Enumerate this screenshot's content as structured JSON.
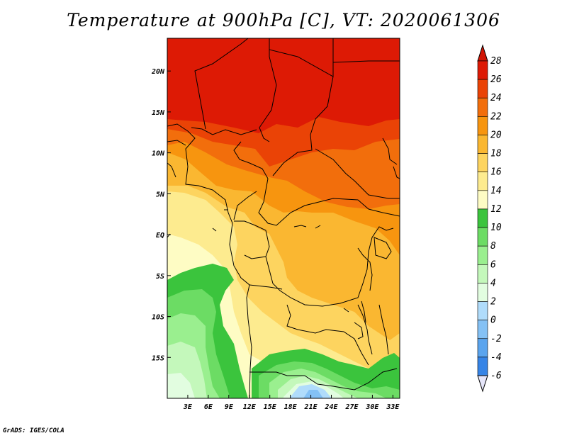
{
  "title": "Temperature at 900hPa [C], VT: 2020061306",
  "credit": "GrADS: IGES/COLA",
  "map": {
    "lon_range": [
      0,
      34
    ],
    "lat_range": [
      -20,
      24
    ],
    "lat_ticks": [
      {
        "value": 20,
        "label": "20N"
      },
      {
        "value": 15,
        "label": "15N"
      },
      {
        "value": 10,
        "label": "10N"
      },
      {
        "value": 5,
        "label": "5N"
      },
      {
        "value": 0,
        "label": "EQ"
      },
      {
        "value": -5,
        "label": "5S"
      },
      {
        "value": -10,
        "label": "10S"
      },
      {
        "value": -15,
        "label": "15S"
      }
    ],
    "lon_ticks": [
      {
        "value": 3,
        "label": "3E"
      },
      {
        "value": 6,
        "label": "6E"
      },
      {
        "value": 9,
        "label": "9E"
      },
      {
        "value": 12,
        "label": "12E"
      },
      {
        "value": 15,
        "label": "15E"
      },
      {
        "value": 18,
        "label": "18E"
      },
      {
        "value": 21,
        "label": "21E"
      },
      {
        "value": 24,
        "label": "24E"
      },
      {
        "value": 27,
        "label": "27E"
      },
      {
        "value": 30,
        "label": "30E"
      },
      {
        "value": 33,
        "label": "33E"
      }
    ]
  },
  "colorbar": {
    "labels": [
      "28",
      "26",
      "24",
      "22",
      "20",
      "18",
      "16",
      "14",
      "12",
      "10",
      "8",
      "6",
      "4",
      "2",
      "0",
      "-2",
      "-4",
      "-6"
    ],
    "colors": [
      "#dd1a05",
      "#ea4306",
      "#f26e0c",
      "#f7950f",
      "#fab731",
      "#fdd45f",
      "#fdeb8f",
      "#fefcc4",
      "#3bc43d",
      "#6cdc64",
      "#9aef8f",
      "#c4f8bb",
      "#e2fde0",
      "#b0dcfb",
      "#84c1f5",
      "#5aa4ee",
      "#3684e6",
      "#1c67dd",
      "#0f4cc5",
      "#0a33a8",
      "#071e7c"
    ],
    "top_arrow_color": "#d01404",
    "bottom_arrow_color": "#e6e6fa"
  }
}
